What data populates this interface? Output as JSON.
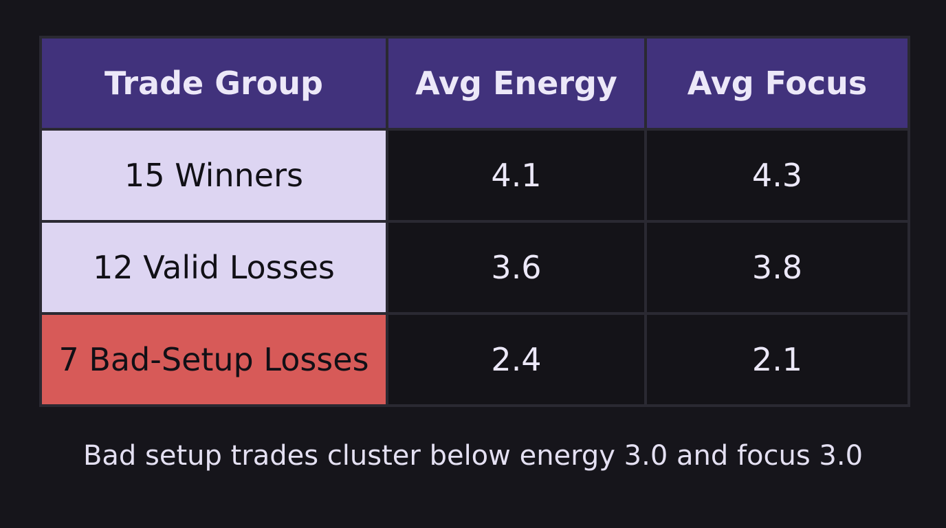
{
  "chart_data": {
    "type": "table",
    "columns": [
      "Trade Group",
      "Avg Energy",
      "Avg Focus"
    ],
    "rows": [
      {
        "group": "15 Winners",
        "energy": "4.1",
        "focus": "4.3",
        "highlight": "#ddd5f2"
      },
      {
        "group": "12 Valid Losses",
        "energy": "3.6",
        "focus": "3.8",
        "highlight": "#ddd5f2"
      },
      {
        "group": "7 Bad-Setup Losses",
        "energy": "2.4",
        "focus": "2.1",
        "highlight": "#d75a58"
      }
    ],
    "caption": "Bad setup trades cluster below energy 3.0 and focus 3.0"
  },
  "colors": {
    "background": "#16151b",
    "header_bg": "#41327c",
    "normal_group_bg": "#ddd5f2",
    "bad_group_bg": "#d75a58",
    "value_cell_bg": "#141318"
  }
}
